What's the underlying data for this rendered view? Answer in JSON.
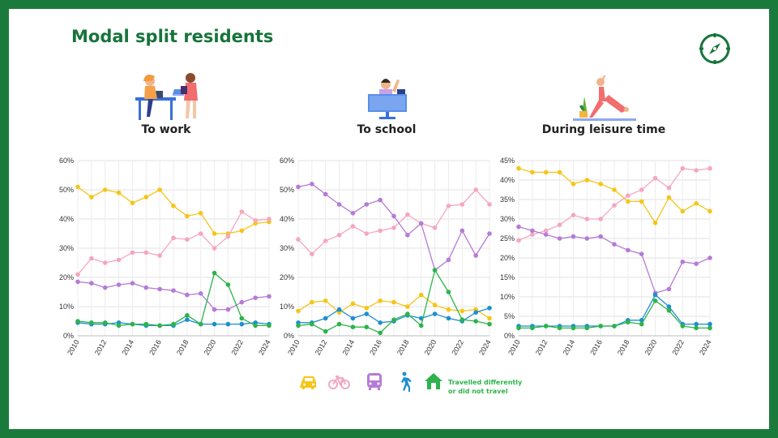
{
  "page": {
    "title": "Modal split residents"
  },
  "colors": {
    "frame": "#1a7a3c",
    "car": "#f5c518",
    "bicycle": "#f4a7c0",
    "bus": "#b57bd6",
    "walking": "#1d8fce",
    "other": "#2db34a"
  },
  "icons": [
    "compass-icon",
    "car-icon",
    "bicycle-icon",
    "bus-icon",
    "walking-icon",
    "house-icon"
  ],
  "legend": {
    "other_line1": "Travelled differently",
    "other_line2": "or did not travel"
  },
  "chart_data": [
    {
      "type": "line",
      "title": "To work",
      "x": [
        2010,
        2011,
        2012,
        2013,
        2014,
        2015,
        2016,
        2017,
        2018,
        2019,
        2020,
        2021,
        2022,
        2023,
        2024
      ],
      "xticks": [
        "2010",
        "2012",
        "2014",
        "2016",
        "2018",
        "2020",
        "2022",
        "2024"
      ],
      "ylim": [
        0,
        60
      ],
      "yticks": [
        "0%",
        "10%",
        "20%",
        "30%",
        "40%",
        "50%",
        "60%"
      ],
      "grid": true,
      "series": [
        {
          "key": "car",
          "values": [
            51,
            47.5,
            50,
            49,
            45.5,
            47.5,
            50,
            44.5,
            41,
            42,
            35,
            35,
            36,
            38.5,
            39
          ]
        },
        {
          "key": "bicycle",
          "values": [
            21,
            26.5,
            25,
            26,
            28.5,
            28.5,
            27.5,
            33.5,
            33,
            35,
            30,
            34,
            42.5,
            39.5,
            40
          ]
        },
        {
          "key": "bus",
          "values": [
            18.5,
            18,
            16.5,
            17.5,
            18,
            16.5,
            16,
            15.5,
            14,
            14.5,
            9,
            9,
            11.5,
            13,
            13.5
          ]
        },
        {
          "key": "walking",
          "values": [
            4.5,
            4,
            4,
            4.5,
            4,
            3.5,
            3.5,
            3.5,
            5.5,
            4,
            4,
            4,
            4,
            4.5,
            4
          ]
        },
        {
          "key": "other",
          "values": [
            5,
            4.5,
            4.5,
            3.5,
            4,
            4,
            3.5,
            4,
            7,
            4,
            21.5,
            17.5,
            6,
            3.5,
            3.5
          ]
        }
      ]
    },
    {
      "type": "line",
      "title": "To school",
      "x": [
        2010,
        2011,
        2012,
        2013,
        2014,
        2015,
        2016,
        2017,
        2018,
        2019,
        2020,
        2021,
        2022,
        2023,
        2024
      ],
      "xticks": [
        "2010",
        "2012",
        "2014",
        "2016",
        "2018",
        "2020",
        "2022",
        "2024"
      ],
      "ylim": [
        0,
        60
      ],
      "yticks": [
        "0%",
        "10%",
        "20%",
        "30%",
        "40%",
        "50%",
        "60%"
      ],
      "grid": true,
      "series": [
        {
          "key": "car",
          "values": [
            8.5,
            11.5,
            12,
            8,
            11,
            9.5,
            12,
            11.5,
            10,
            14,
            10.5,
            9,
            8.5,
            9,
            6
          ]
        },
        {
          "key": "bicycle",
          "values": [
            33,
            28,
            32.5,
            34.5,
            37.5,
            35,
            36,
            37,
            41.5,
            38.5,
            37,
            44.5,
            45,
            50,
            45
          ]
        },
        {
          "key": "bus",
          "values": [
            51,
            52,
            48.5,
            45,
            42,
            45,
            46.5,
            41,
            34.5,
            38.5,
            22.5,
            26,
            36,
            27.5,
            35
          ]
        },
        {
          "key": "walking",
          "values": [
            4.5,
            4.5,
            6,
            9,
            6,
            7.5,
            4.5,
            5,
            7,
            6,
            7.5,
            6,
            5,
            8,
            9.5
          ]
        },
        {
          "key": "other",
          "values": [
            3.5,
            4,
            1.5,
            4,
            3,
            3,
            1,
            5.5,
            7.5,
            3.5,
            22.5,
            15,
            5.5,
            5,
            4
          ]
        }
      ]
    },
    {
      "type": "line",
      "title": "During leisure time",
      "x": [
        2010,
        2011,
        2012,
        2013,
        2014,
        2015,
        2016,
        2017,
        2018,
        2019,
        2020,
        2021,
        2022,
        2023,
        2024
      ],
      "xticks": [
        "2010",
        "2012",
        "2014",
        "2016",
        "2018",
        "2020",
        "2022",
        "2024"
      ],
      "ylim": [
        0,
        45
      ],
      "yticks": [
        "0%",
        "5%",
        "10%",
        "15%",
        "20%",
        "25%",
        "30%",
        "35%",
        "40%",
        "45%"
      ],
      "grid": true,
      "series": [
        {
          "key": "car",
          "values": [
            43,
            42,
            42,
            42,
            39,
            40,
            39,
            37.5,
            34.5,
            34.5,
            29,
            35.5,
            32,
            34,
            32
          ]
        },
        {
          "key": "bicycle",
          "values": [
            24.5,
            26,
            27,
            28.5,
            31,
            30,
            30,
            33.5,
            36,
            37.5,
            40.5,
            38,
            43,
            42.5,
            43
          ]
        },
        {
          "key": "bus",
          "values": [
            28,
            27,
            26,
            25,
            25.5,
            25,
            25.5,
            23.5,
            22,
            21,
            11,
            12,
            19,
            18.5,
            20
          ]
        },
        {
          "key": "walking",
          "values": [
            2.5,
            2.5,
            2.5,
            2.5,
            2.5,
            2.5,
            2.5,
            2.5,
            4,
            4,
            10.5,
            7.5,
            3,
            3,
            3
          ]
        },
        {
          "key": "other",
          "values": [
            2,
            2,
            2.5,
            2,
            2,
            2,
            2.5,
            2.5,
            3.5,
            3,
            9,
            6.5,
            2.5,
            2,
            2
          ]
        }
      ]
    }
  ]
}
